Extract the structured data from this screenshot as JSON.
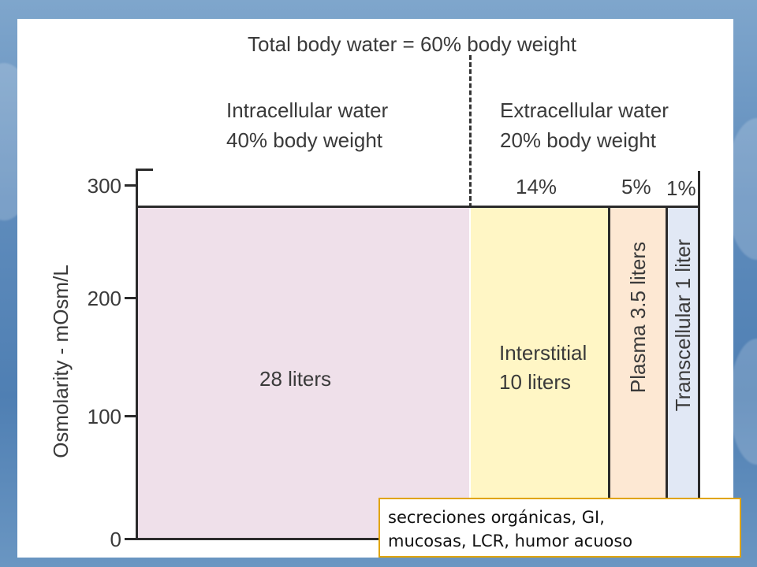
{
  "title": "Total body water = 60% body weight",
  "intracellular": {
    "line1": "Intracellular water",
    "line2": "40% body weight"
  },
  "extracellular": {
    "line1": "Extracellular water",
    "line2": "20% body weight"
  },
  "pct_labels": {
    "interstitial": "14%",
    "plasma": "5%",
    "transcellular": "1%"
  },
  "y_axis": {
    "label": "Osmolarity - mOsm/L",
    "ticks": [
      "300",
      "200",
      "100",
      "0"
    ]
  },
  "compartments": {
    "intracellular": "28 liters",
    "interstitial_line1": "Interstitial",
    "interstitial_line2": "10 liters",
    "plasma": "Plasma 3.5 liters",
    "transcellular": "Transcellular 1 liter"
  },
  "colors": {
    "intracellular": "#efe0ea",
    "interstitial": "#fff6c5",
    "plasma": "#fde8d3",
    "transcellular": "#e1e8f5",
    "note_border": "#e0a400"
  },
  "note": {
    "line1": "secreciones orgánicas, GI,",
    "line2": "mucosas, LCR, humor acuoso"
  }
}
